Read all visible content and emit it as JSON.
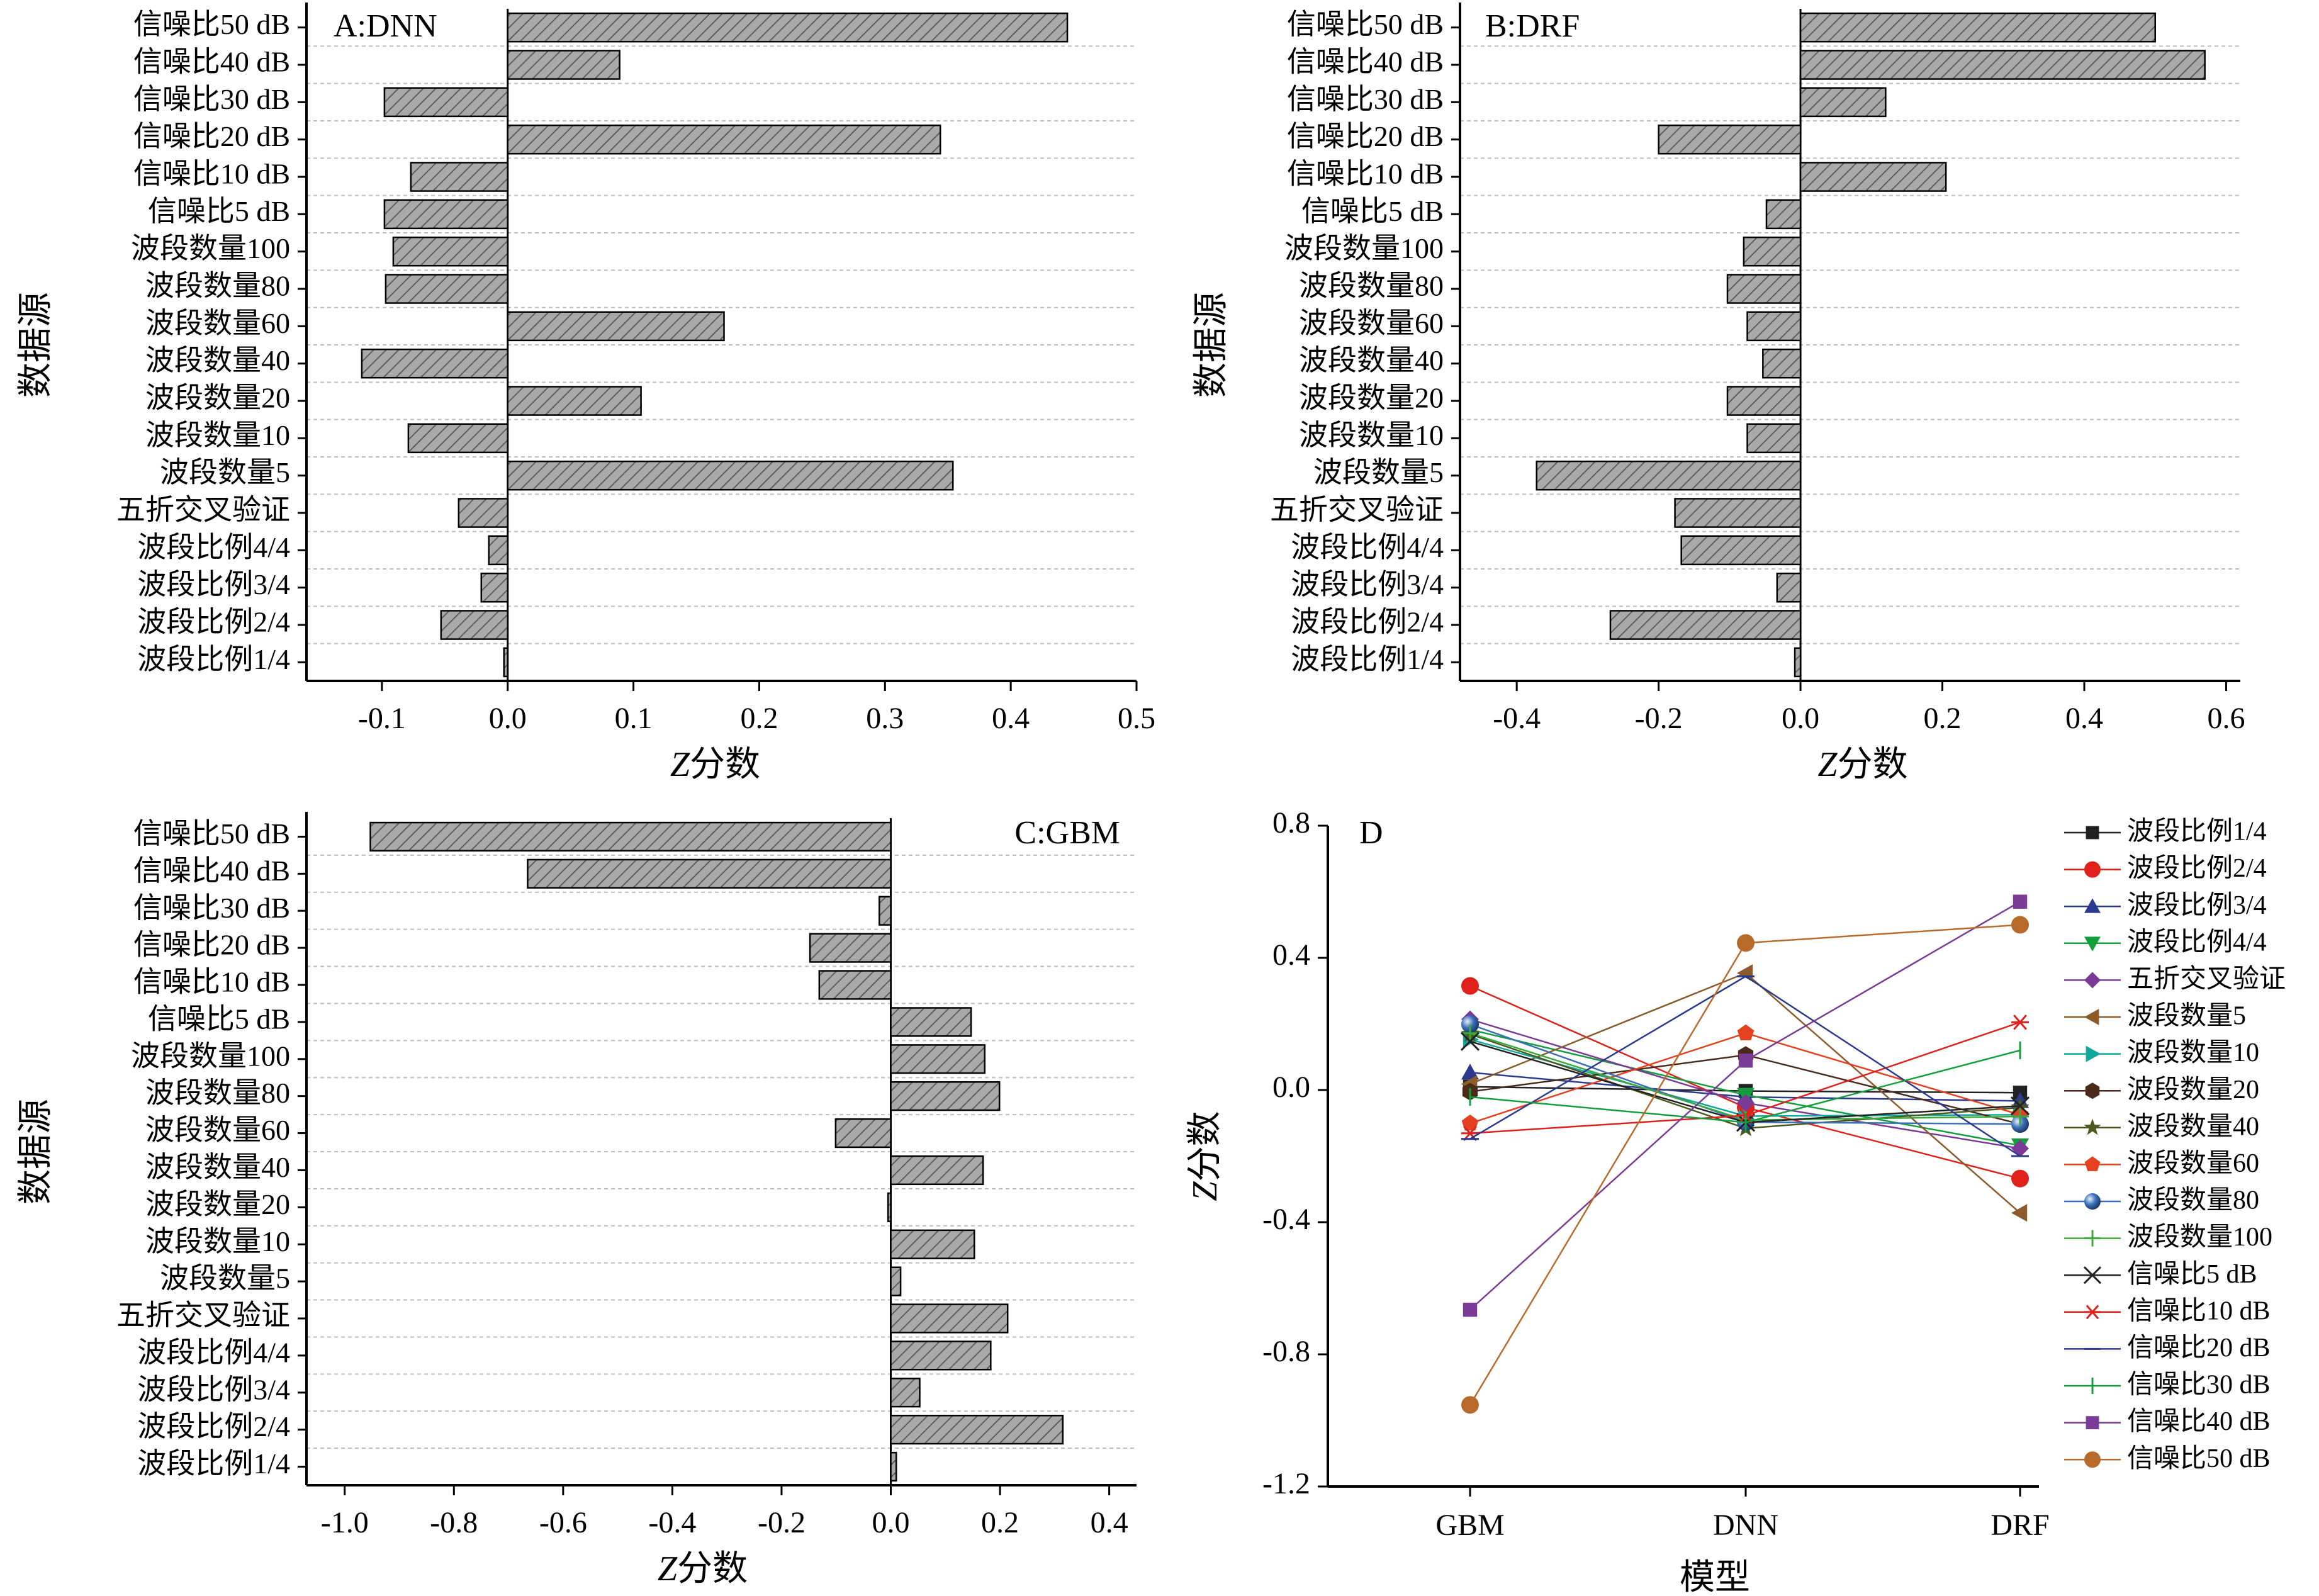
{
  "chart_data": [
    {
      "id": "A",
      "type": "bar",
      "orientation": "horizontal",
      "panel_label": "A:DNN",
      "xlabel_italic": "Z",
      "xlabel": "分数",
      "ylabel": "数据源",
      "xlim": [
        -0.16,
        0.5
      ],
      "xticks": [
        "-0.1",
        "0.0",
        "0.1",
        "0.2",
        "0.3",
        "0.4",
        "0.5"
      ],
      "xtick_values": [
        -0.1,
        0.0,
        0.1,
        0.2,
        0.3,
        0.4,
        0.5
      ],
      "categories": [
        "信噪比50 dB",
        "信噪比40 dB",
        "信噪比30 dB",
        "信噪比20 dB",
        "信噪比10 dB",
        "信噪比5 dB",
        "波段数量100",
        "波段数量80",
        "波段数量60",
        "波段数量40",
        "波段数量20",
        "波段数量10",
        "波段数量5",
        "五折交叉验证",
        "波段比例4/4",
        "波段比例3/4",
        "波段比例2/4",
        "波段比例1/4"
      ],
      "values": [
        0.445,
        0.089,
        -0.098,
        0.344,
        -0.077,
        -0.098,
        -0.091,
        -0.097,
        0.172,
        -0.116,
        0.106,
        -0.079,
        0.354,
        -0.039,
        -0.015,
        -0.021,
        -0.053,
        -0.003
      ]
    },
    {
      "id": "B",
      "type": "bar",
      "orientation": "horizontal",
      "panel_label": "B:DRF",
      "xlabel_italic": "Z",
      "xlabel": "分数",
      "ylabel": "数据源",
      "xlim": [
        -0.48,
        0.62
      ],
      "xticks": [
        "-0.4",
        "-0.2",
        "0.0",
        "0.2",
        "0.4",
        "0.6"
      ],
      "xtick_values": [
        -0.4,
        -0.2,
        0.0,
        0.2,
        0.4,
        0.6
      ],
      "categories": [
        "信噪比50 dB",
        "信噪比40 dB",
        "信噪比30 dB",
        "信噪比20 dB",
        "信噪比10 dB",
        "信噪比5 dB",
        "波段数量100",
        "波段数量80",
        "波段数量60",
        "波段数量40",
        "波段数量20",
        "波段数量10",
        "波段数量5",
        "五折交叉验证",
        "波段比例4/4",
        "波段比例3/4",
        "波段比例2/4",
        "波段比例1/4"
      ],
      "values": [
        0.5,
        0.57,
        0.12,
        -0.2,
        0.205,
        -0.048,
        -0.08,
        -0.103,
        -0.075,
        -0.053,
        -0.103,
        -0.075,
        -0.372,
        -0.177,
        -0.168,
        -0.033,
        -0.268,
        -0.008
      ]
    },
    {
      "id": "C",
      "type": "bar",
      "orientation": "horizontal",
      "panel_label": "C:GBM",
      "xlabel_italic": "Z",
      "xlabel": "分数",
      "ylabel": "数据源",
      "xlim": [
        -1.07,
        0.45
      ],
      "xticks": [
        "-1.0",
        "-0.8",
        "-0.6",
        "-0.4",
        "-0.2",
        "0.0",
        "0.2",
        "0.4"
      ],
      "xtick_values": [
        -1.0,
        -0.8,
        -0.6,
        -0.4,
        -0.2,
        0.0,
        0.2,
        0.4
      ],
      "categories": [
        "信噪比50 dB",
        "信噪比40 dB",
        "信噪比30 dB",
        "信噪比20 dB",
        "信噪比10 dB",
        "信噪比5 dB",
        "波段数量100",
        "波段数量80",
        "波段数量60",
        "波段数量40",
        "波段数量20",
        "波段数量10",
        "波段数量5",
        "五折交叉验证",
        "波段比例4/4",
        "波段比例3/4",
        "波段比例2/4",
        "波段比例1/4"
      ],
      "values": [
        -0.953,
        -0.665,
        -0.021,
        -0.148,
        -0.131,
        0.147,
        0.172,
        0.199,
        -0.101,
        0.169,
        -0.005,
        0.153,
        0.018,
        0.214,
        0.183,
        0.053,
        0.315,
        0.01
      ]
    },
    {
      "id": "D",
      "type": "line",
      "panel_label": "D",
      "xlabel": "模型",
      "ylabel_italic": "Z",
      "ylabel": "分数",
      "categories": [
        "GBM",
        "DNN",
        "DRF"
      ],
      "ylim": [
        -1.2,
        0.8
      ],
      "yticks": [
        "-1.2",
        "-0.8",
        "-0.4",
        "0.0",
        "0.4",
        "0.8"
      ],
      "ytick_values": [
        -1.2,
        -0.8,
        -0.4,
        0.0,
        0.4,
        0.8
      ],
      "series": [
        {
          "name": "波段比例1/4",
          "color": "#222222",
          "marker": "square",
          "values": [
            0.01,
            -0.003,
            -0.008
          ]
        },
        {
          "name": "波段比例2/4",
          "color": "#e0201b",
          "marker": "circle",
          "values": [
            0.315,
            -0.053,
            -0.268
          ]
        },
        {
          "name": "波段比例3/4",
          "color": "#2b3a8f",
          "marker": "triangle-up",
          "values": [
            0.053,
            -0.021,
            -0.033
          ]
        },
        {
          "name": "波段比例4/4",
          "color": "#12a03c",
          "marker": "triangle-down",
          "values": [
            0.183,
            -0.015,
            -0.168
          ]
        },
        {
          "name": "五折交叉验证",
          "color": "#7b3a96",
          "marker": "diamond",
          "values": [
            0.214,
            -0.039,
            -0.177
          ]
        },
        {
          "name": "波段数量5",
          "color": "#8c5a2b",
          "marker": "triangle-left",
          "values": [
            0.018,
            0.354,
            -0.372
          ]
        },
        {
          "name": "波段数量10",
          "color": "#10a89a",
          "marker": "triangle-right",
          "values": [
            0.153,
            -0.079,
            -0.075
          ]
        },
        {
          "name": "波段数量20",
          "color": "#4a2a1a",
          "marker": "hexagon",
          "values": [
            -0.005,
            0.106,
            -0.103
          ]
        },
        {
          "name": "波段数量40",
          "color": "#4b5a1e",
          "marker": "star",
          "values": [
            0.169,
            -0.116,
            -0.053
          ]
        },
        {
          "name": "波段数量60",
          "color": "#e5401f",
          "marker": "pentagon",
          "values": [
            -0.101,
            0.172,
            -0.075
          ]
        },
        {
          "name": "波段数量80",
          "color": "#3a6fb5",
          "marker": "sphere",
          "values": [
            0.199,
            -0.097,
            -0.103
          ]
        },
        {
          "name": "波段数量100",
          "color": "#3aaa3a",
          "marker": "plus",
          "values": [
            0.172,
            -0.091,
            -0.08
          ]
        },
        {
          "name": "信噪比5 dB",
          "color": "#222222",
          "marker": "x",
          "values": [
            0.147,
            -0.098,
            -0.048
          ]
        },
        {
          "name": "信噪比10 dB",
          "color": "#e0201b",
          "marker": "asterisk",
          "values": [
            -0.131,
            -0.077,
            0.205
          ]
        },
        {
          "name": "信噪比20 dB",
          "color": "#2b3a8f",
          "marker": "dash",
          "values": [
            -0.148,
            0.344,
            -0.2
          ]
        },
        {
          "name": "信噪比30 dB",
          "color": "#12a03c",
          "marker": "vbar",
          "values": [
            -0.021,
            -0.098,
            0.12
          ]
        },
        {
          "name": "信噪比40 dB",
          "color": "#7b3a96",
          "marker": "square",
          "values": [
            -0.665,
            0.089,
            0.57
          ]
        },
        {
          "name": "信噪比50 dB",
          "color": "#b86a2a",
          "marker": "circle",
          "values": [
            -0.953,
            0.445,
            0.5
          ]
        }
      ]
    }
  ]
}
